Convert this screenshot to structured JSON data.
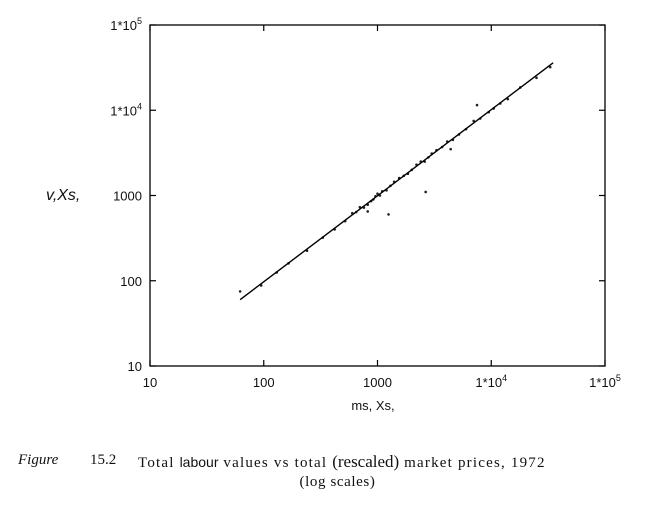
{
  "chart_data": {
    "type": "scatter",
    "title": "",
    "xlabel": "ms, Xs,",
    "ylabel": "v,Xs,",
    "x_scale": "log",
    "y_scale": "log",
    "xlim": [
      10,
      100000
    ],
    "ylim": [
      10,
      100000
    ],
    "x_ticks": [
      10,
      100,
      1000,
      10000,
      100000
    ],
    "x_tick_labels": [
      "10",
      "100",
      "1000",
      "1*10",
      "1*10"
    ],
    "x_tick_sups": [
      "",
      "",
      "",
      "4",
      "5"
    ],
    "y_ticks": [
      10,
      100,
      1000,
      10000,
      100000
    ],
    "y_tick_labels": [
      "10",
      "100",
      "1000",
      "1*10",
      "1*10"
    ],
    "y_tick_sups": [
      "",
      "",
      "",
      "4",
      "5"
    ],
    "grid": false,
    "legend": "none",
    "fit_line": {
      "x": [
        62,
        35000
      ],
      "y": [
        60,
        36000
      ]
    },
    "points": {
      "x": [
        62,
        95,
        130,
        165,
        240,
        330,
        420,
        520,
        600,
        650,
        700,
        760,
        820,
        880,
        920,
        960,
        1000,
        1050,
        1100,
        1200,
        1300,
        1400,
        1550,
        1700,
        1850,
        2000,
        2200,
        2400,
        2600,
        2800,
        3000,
        3300,
        3700,
        4100,
        4600,
        5200,
        6000,
        7000,
        8000,
        9500,
        10500,
        12000,
        14000,
        18000,
        25000,
        33000,
        820,
        1250,
        2650,
        4400,
        7500
      ],
      "y": [
        75,
        88,
        125,
        160,
        225,
        320,
        400,
        500,
        620,
        640,
        730,
        720,
        780,
        860,
        900,
        980,
        1050,
        1000,
        1120,
        1150,
        1300,
        1450,
        1600,
        1700,
        1800,
        2000,
        2300,
        2500,
        2500,
        2800,
        3100,
        3400,
        3700,
        4300,
        4500,
        5200,
        6000,
        7500,
        8000,
        9500,
        10500,
        12000,
        13500,
        18500,
        24000,
        32000,
        650,
        600,
        1100,
        3500,
        11500
      ]
    }
  },
  "caption": {
    "figure": "Figure",
    "number": "15.2",
    "title_a": "Total ",
    "title_b": "labour",
    "title_c": " values vs total ",
    "title_d": "(rescaled)",
    "title_e": " market prices, 1972",
    "line2": "(log scales)"
  }
}
